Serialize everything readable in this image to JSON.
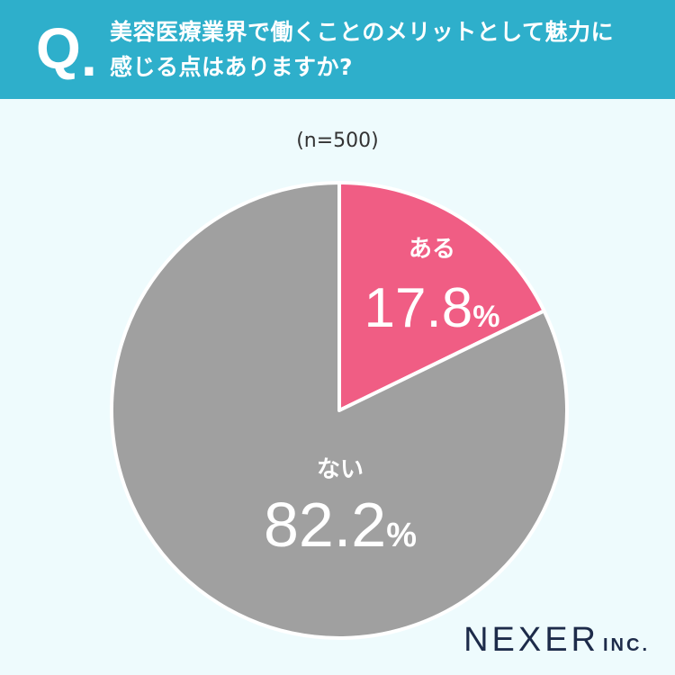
{
  "header": {
    "q_mark": "Q",
    "q_dot": ".",
    "question_line1": "美容医療業界で働くことのメリットとして魅力に",
    "question_line2": "感じる点はありますか?"
  },
  "sample": "(n=500)",
  "chart_data": {
    "type": "pie",
    "slices": [
      {
        "label": "ある",
        "value": 17.8,
        "display": "17.8",
        "color": "#f05d84"
      },
      {
        "label": "ない",
        "value": 82.2,
        "display": "82.2",
        "color": "#a0a0a0"
      }
    ],
    "unit": "%",
    "start": "top",
    "direction": "clockwise"
  },
  "logo": {
    "name": "NEXER",
    "suffix": "INC."
  }
}
